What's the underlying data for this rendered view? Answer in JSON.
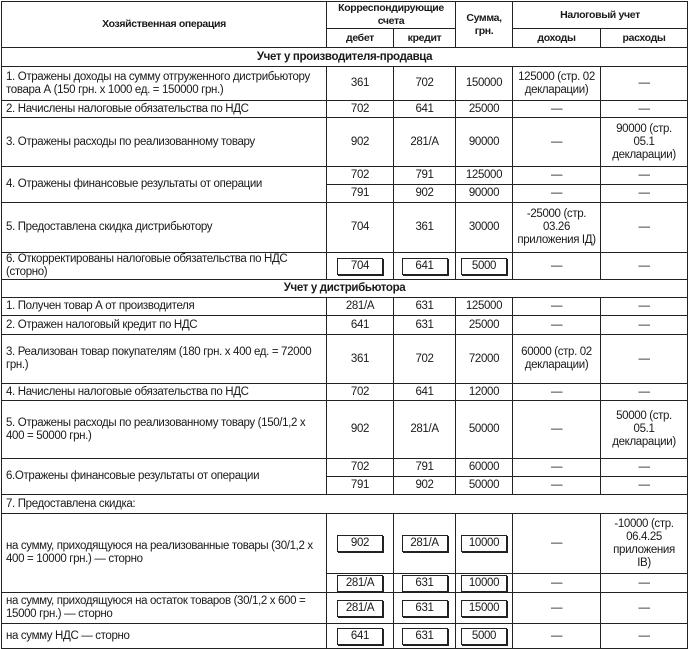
{
  "header": {
    "operation": "Хозяйственная операция",
    "accounts": "Корреспондирующие счета",
    "debit": "дебет",
    "credit": "кредит",
    "sum": "Сумма, грн.",
    "tax": "Налоговый учет",
    "income": "доходы",
    "expense": "расходы"
  },
  "sections": [
    {
      "title": "Учет у производителя-продавца",
      "ops": [
        {
          "op": "1. Отражены доходы на сумму отгруженного дистрибьютору товара А (150 грн. x 1000 ед. = 150000 грн.)",
          "rows": [
            {
              "debit": "361",
              "credit": "702",
              "sum": "150000",
              "income": "125000 (стр. 02 декларации)",
              "expense": "—"
            }
          ]
        },
        {
          "op": "2. Начислены налоговые обязательства по НДС",
          "rows": [
            {
              "debit": "702",
              "credit": "641",
              "sum": "25000",
              "income": "—",
              "expense": "—"
            }
          ]
        },
        {
          "op": "3. Отражены расходы по реализованному товару",
          "rows": [
            {
              "debit": "902",
              "credit": "281/А",
              "sum": "90000",
              "income": "—",
              "expense": "90000 (стр. 05.1 декларации)"
            }
          ]
        },
        {
          "op": "4. Отражены финансовые результаты от операции",
          "rows": [
            {
              "debit": "702",
              "credit": "791",
              "sum": "125000",
              "income": "—",
              "expense": "—"
            },
            {
              "debit": "791",
              "credit": "902",
              "sum": "90000",
              "income": "—",
              "expense": "—"
            }
          ]
        },
        {
          "op": "5. Предоставлена скидка дистрибьютору",
          "rows": [
            {
              "debit": "704",
              "credit": "361",
              "sum": "30000",
              "income": "-25000 (стр. 03.26 приложения ІД)",
              "expense": "—"
            }
          ]
        },
        {
          "op": "6. Откорректированы налоговые обязательства по НДС (сторно)",
          "rows": [
            {
              "debit": "704",
              "credit": "641",
              "sum": "5000",
              "income": "—",
              "expense": "—",
              "boxed": true
            }
          ]
        }
      ]
    },
    {
      "title": "Учет у дистрибьютора",
      "ops": [
        {
          "op": "1. Получен товар А от производителя",
          "rows": [
            {
              "debit": "281/А",
              "credit": "631",
              "sum": "125000",
              "income": "—",
              "expense": "—"
            }
          ]
        },
        {
          "op": "2. Отражен налоговый кредит по НДС",
          "rows": [
            {
              "debit": "641",
              "credit": "631",
              "sum": "25000",
              "income": "—",
              "expense": "—"
            }
          ]
        },
        {
          "op": "3. Реализован товар покупателям (180 грн. x 400 ед. = 72000 грн.)",
          "rows": [
            {
              "debit": "361",
              "credit": "702",
              "sum": "72000",
              "income": "60000 (стр. 02 декларации)",
              "expense": "—"
            }
          ]
        },
        {
          "op": "4. Начислены налоговые обязательства по НДС",
          "rows": [
            {
              "debit": "702",
              "credit": "641",
              "sum": "12000",
              "income": "—",
              "expense": "—"
            }
          ]
        },
        {
          "op": "5. Отражены расходы по реализованному товару (150/1,2 x 400 = 50000 грн.)",
          "rows": [
            {
              "debit": "902",
              "credit": "281/А",
              "sum": "50000",
              "income": "—",
              "expense": "50000 (стр. 05.1 декларации)"
            }
          ]
        },
        {
          "op": "6.Отражены финансовые результаты от операции",
          "rows": [
            {
              "debit": "702",
              "credit": "791",
              "sum": "60000",
              "income": "—",
              "expense": "—"
            },
            {
              "debit": "791",
              "credit": "902",
              "sum": "50000",
              "income": "—",
              "expense": "—"
            }
          ]
        },
        {
          "op": "7. Предоставлена скидка:",
          "full": true,
          "rows": []
        },
        {
          "op": "на сумму, приходящуюся на реализованные товары (30/1,2 x 400 = 10000 грн.) — сторно",
          "rows": [
            {
              "debit": "902",
              "credit": "281/А",
              "sum": "10000",
              "income": "—",
              "expense": "-10000 (стр. 06.4.25 приложения ІВ)",
              "boxed": true
            },
            {
              "debit": "281/А",
              "credit": "631",
              "sum": "10000",
              "income": "—",
              "expense": "—",
              "boxed": true
            }
          ]
        },
        {
          "op": "на сумму, приходящуюся на остаток товаров (30/1,2 x 600 = 15000 грн.) — сторно",
          "rows": [
            {
              "debit": "281/А",
              "credit": "631",
              "sum": "15000",
              "income": "—",
              "expense": "—",
              "boxed": true
            }
          ]
        },
        {
          "op": "на сумму НДС — сторно",
          "rows": [
            {
              "debit": "641",
              "credit": "631",
              "sum": "5000",
              "income": "—",
              "expense": "—",
              "boxed": true
            }
          ]
        }
      ]
    }
  ]
}
